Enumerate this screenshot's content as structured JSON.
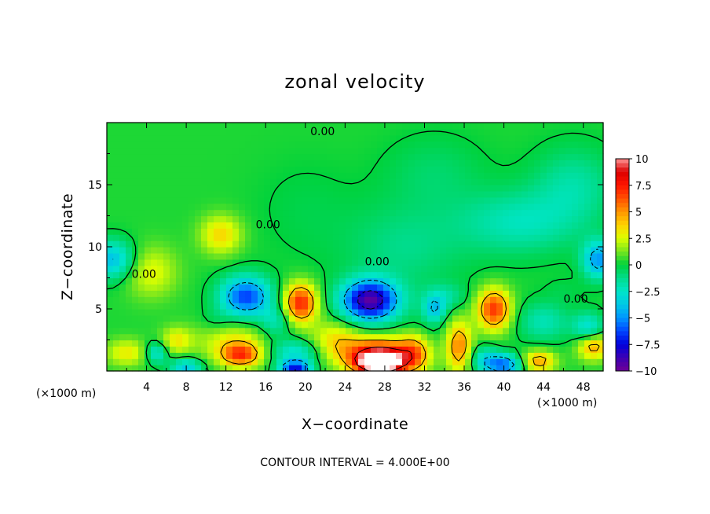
{
  "chart_data": {
    "type": "heatmap",
    "title": "zonal velocity",
    "xlabel": "X−coordinate",
    "ylabel": "Z−coordinate",
    "x_units": "(×1000 m)",
    "y_units": "(×1000 m)",
    "xlim": [
      0,
      50
    ],
    "ylim": [
      0,
      20
    ],
    "x_ticks": [
      4,
      8,
      12,
      16,
      20,
      24,
      28,
      32,
      36,
      40,
      44,
      48
    ],
    "y_ticks": [
      5,
      10,
      15
    ],
    "colorbar": {
      "range": [
        -10,
        10
      ],
      "tick_values": [
        10,
        7.5,
        5,
        2.5,
        0,
        -2.5,
        -5,
        -7.5,
        -10
      ],
      "tick_labels": [
        "10",
        "7.5",
        "5",
        "2.5",
        "0",
        "−2.5",
        "−5",
        "−7.5",
        "−10"
      ]
    },
    "contour_interval": "4.000E+00",
    "footer": "CONTOUR INTERVAL = 4.000E+00",
    "contour_label": "0.00",
    "background_value": 0.3,
    "features": [
      {
        "x": 0.5,
        "z": 9.0,
        "value": -4.5,
        "rx": 2.2,
        "rz": 1.5
      },
      {
        "x": 2.0,
        "z": 1.5,
        "value": 3.0,
        "rx": 2.0,
        "rz": 1.0
      },
      {
        "x": 4.5,
        "z": 8.0,
        "value": 2.5,
        "rx": 2.5,
        "rz": 2.0
      },
      {
        "x": 5.0,
        "z": 1.5,
        "value": -4.0,
        "rx": 1.0,
        "rz": 0.8
      },
      {
        "x": 7.0,
        "z": 2.5,
        "value": 3.0,
        "rx": 1.5,
        "rz": 1.0
      },
      {
        "x": 8.0,
        "z": 0.3,
        "value": -5.0,
        "rx": 1.5,
        "rz": 0.6
      },
      {
        "x": 10.0,
        "z": 7.0,
        "value": 0.0,
        "rx": 2.5,
        "rz": 1.5
      },
      {
        "x": 11.5,
        "z": 11.0,
        "value": 3.5,
        "rx": 2.0,
        "rz": 1.5
      },
      {
        "x": 12.5,
        "z": 2.5,
        "value": 2.5,
        "rx": 3.5,
        "rz": 1.5
      },
      {
        "x": 14.0,
        "z": 6.0,
        "value": -7.0,
        "rx": 2.5,
        "rz": 1.6
      },
      {
        "x": 13.5,
        "z": 1.3,
        "value": 6.5,
        "rx": 2.0,
        "rz": 0.9
      },
      {
        "x": 11.0,
        "z": 4.0,
        "value": -1.0,
        "rx": 1.5,
        "rz": 1.0
      },
      {
        "x": 17.0,
        "z": 4.0,
        "value": -2.5,
        "rx": 1.5,
        "rz": 1.2
      },
      {
        "x": 19.5,
        "z": 5.5,
        "value": 7.5,
        "rx": 1.6,
        "rz": 1.5
      },
      {
        "x": 19.0,
        "z": 1.5,
        "value": -3.5,
        "rx": 2.5,
        "rz": 1.0
      },
      {
        "x": 19.0,
        "z": 0.2,
        "value": -9.5,
        "rx": 1.5,
        "rz": 0.5
      },
      {
        "x": 20.0,
        "z": 13.0,
        "value": -0.5,
        "rx": 5.0,
        "rz": 4.0
      },
      {
        "x": 23.0,
        "z": 2.5,
        "value": 3.0,
        "rx": 2.5,
        "rz": 1.5
      },
      {
        "x": 26.5,
        "z": 5.7,
        "value": -10.0,
        "rx": 2.8,
        "rz": 1.6
      },
      {
        "x": 27.5,
        "z": 1.3,
        "value": 8.5,
        "rx": 3.5,
        "rz": 1.3
      },
      {
        "x": 27.5,
        "z": 0.6,
        "value": 11.0,
        "rx": 2.2,
        "rz": 0.8
      },
      {
        "x": 30.0,
        "z": 10.0,
        "value": -1.5,
        "rx": 6.0,
        "rz": 3.5
      },
      {
        "x": 32.0,
        "z": 3.5,
        "value": -0.5,
        "rx": 2.0,
        "rz": 2.0
      },
      {
        "x": 31.0,
        "z": 1.5,
        "value": 4.0,
        "rx": 1.5,
        "rz": 1.5
      },
      {
        "x": 33.0,
        "z": 5.0,
        "value": -4.0,
        "rx": 1.0,
        "rz": 1.0
      },
      {
        "x": 35.5,
        "z": 2.0,
        "value": 5.5,
        "rx": 1.2,
        "rz": 2.0
      },
      {
        "x": 34.0,
        "z": 6.0,
        "value": -2.0,
        "rx": 2.0,
        "rz": 1.0
      },
      {
        "x": 38.0,
        "z": 1.0,
        "value": -3.0,
        "rx": 1.5,
        "rz": 1.0
      },
      {
        "x": 39.0,
        "z": 5.0,
        "value": 7.0,
        "rx": 1.6,
        "rz": 1.6
      },
      {
        "x": 40.0,
        "z": 0.5,
        "value": -6.5,
        "rx": 1.8,
        "rz": 0.8
      },
      {
        "x": 41.5,
        "z": 12.0,
        "value": -2.5,
        "rx": 6.0,
        "rz": 2.5
      },
      {
        "x": 43.5,
        "z": 0.8,
        "value": 5.0,
        "rx": 1.6,
        "rz": 0.8
      },
      {
        "x": 44.0,
        "z": 4.0,
        "value": -2.5,
        "rx": 2.5,
        "rz": 1.5
      },
      {
        "x": 46.0,
        "z": 6.5,
        "value": -0.5,
        "rx": 2.0,
        "rz": 1.0
      },
      {
        "x": 48.5,
        "z": 3.5,
        "value": -3.5,
        "rx": 1.5,
        "rz": 1.2
      },
      {
        "x": 49.5,
        "z": 9.0,
        "value": -5.5,
        "rx": 1.5,
        "rz": 1.5
      },
      {
        "x": 49.0,
        "z": 2.0,
        "value": 5.0,
        "rx": 1.5,
        "rz": 1.0
      },
      {
        "x": 47.0,
        "z": 15.0,
        "value": -2.0,
        "rx": 4.0,
        "rz": 3.0
      },
      {
        "x": 33.0,
        "z": 16.0,
        "value": -1.0,
        "rx": 5.0,
        "rz": 3.0
      }
    ]
  }
}
